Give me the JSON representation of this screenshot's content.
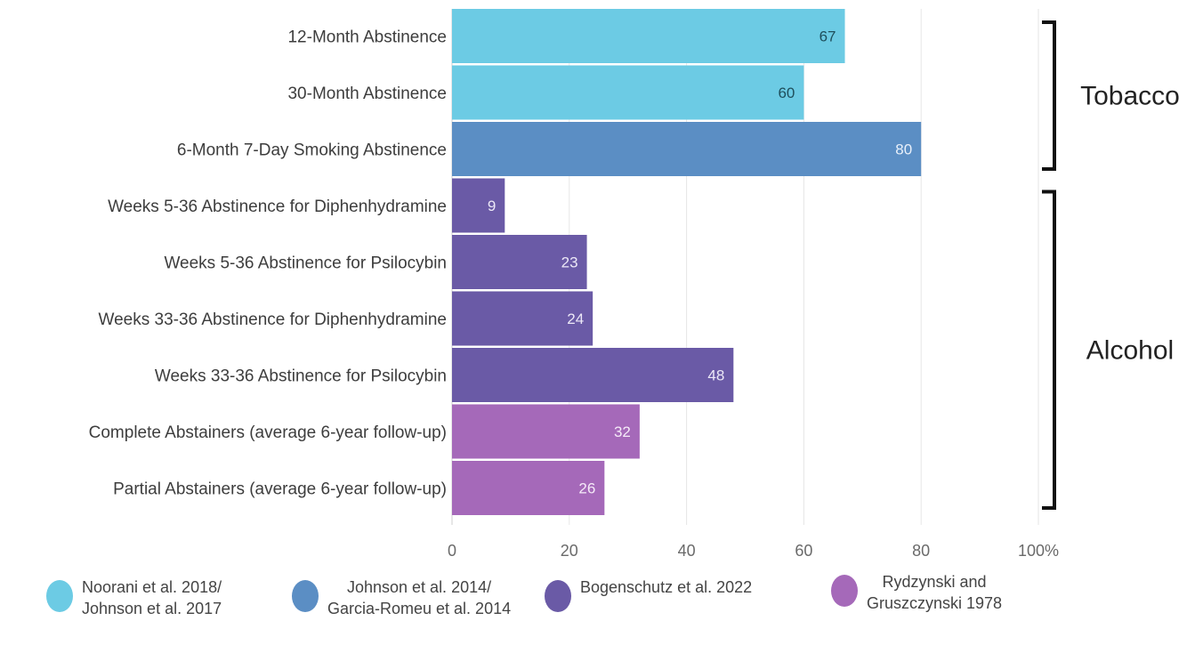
{
  "chart_data": {
    "type": "bar",
    "orientation": "horizontal",
    "categories": [
      "12-Month Abstinence",
      "30-Month Abstinence",
      "6-Month 7-Day Smoking Abstinence",
      "Weeks 5-36 Abstinence for Diphenhydramine",
      "Weeks 5-36 Abstinence for Psilocybin",
      "Weeks 33-36 Abstinence for Diphenhydramine",
      "Weeks 33-36 Abstinence for Psilocybin",
      "Complete Abstainers (average 6-year follow-up)",
      "Partial Abstainers (average 6-year follow-up)"
    ],
    "values": [
      67,
      60,
      80,
      9,
      23,
      24,
      48,
      32,
      26
    ],
    "value_labels": [
      "67",
      "60",
      "80",
      "9",
      "23",
      "24",
      "48",
      "32",
      "26"
    ],
    "bar_series": [
      0,
      0,
      1,
      2,
      2,
      2,
      2,
      3,
      3
    ],
    "series": [
      {
        "name_lines": [
          "Noorani et al. 2018/",
          "Johnson et al. 2017"
        ],
        "color": "#6ccbe4",
        "label_color": "#1f4f5c"
      },
      {
        "name_lines": [
          "Johnson et al. 2014/",
          "Garcia-Romeu et al. 2014"
        ],
        "color": "#5b8ec4",
        "label_color": "#e8f0fa"
      },
      {
        "name_lines": [
          "Bogenschutz et al. 2022"
        ],
        "color": "#6a5aa6",
        "label_color": "#ece8f7"
      },
      {
        "name_lines": [
          "Rydzynski and",
          "Gruszczynski 1978"
        ],
        "color": "#a569b9",
        "label_color": "#f5eaf8"
      }
    ],
    "x_ticks": [
      "0",
      "20",
      "40",
      "60",
      "80",
      "100%"
    ],
    "xlim": [
      0,
      100
    ],
    "grid": "vertical",
    "groups": [
      {
        "label": "Tobacco",
        "categories": [
          0,
          1,
          2
        ]
      },
      {
        "label": "Alcohol",
        "categories": [
          3,
          4,
          5,
          6,
          7,
          8
        ]
      }
    ],
    "legend_position": "bottom"
  }
}
